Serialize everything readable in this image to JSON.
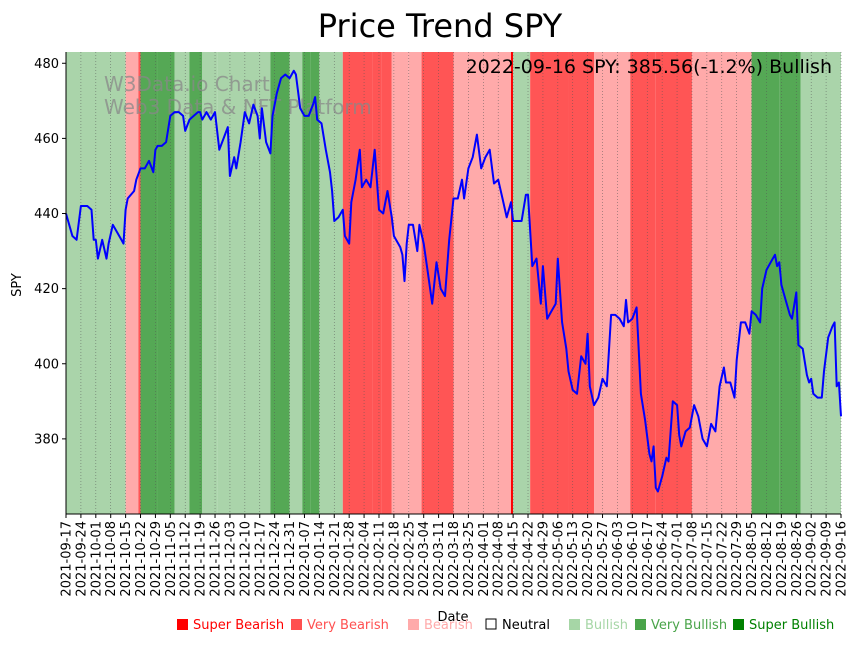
{
  "chart_data": {
    "type": "line",
    "title": "Price Trend SPY",
    "annotation": "2022-09-16 SPY: 385.56(-1.2%) Bullish",
    "watermark": [
      "W3Data.io Chart",
      "Web3 Data & NFT Platform"
    ],
    "xlabel": "Date",
    "ylabel": "SPY",
    "ylim": [
      360,
      483
    ],
    "yticks": [
      380,
      400,
      420,
      440,
      460,
      480
    ],
    "line_color": "#0000ff",
    "date_start": "2021-09-17",
    "date_end": "2022-09-16",
    "xticks": [
      "2021-09-17",
      "2021-09-24",
      "2021-10-01",
      "2021-10-08",
      "2021-10-15",
      "2021-10-22",
      "2021-10-29",
      "2021-11-05",
      "2021-11-12",
      "2021-11-19",
      "2021-11-26",
      "2021-12-03",
      "2021-12-10",
      "2021-12-17",
      "2021-12-24",
      "2021-12-31",
      "2022-01-07",
      "2022-01-14",
      "2022-01-21",
      "2022-01-28",
      "2022-02-04",
      "2022-02-11",
      "2022-02-18",
      "2022-02-25",
      "2022-03-04",
      "2022-03-11",
      "2022-03-18",
      "2022-03-25",
      "2022-04-01",
      "2022-04-08",
      "2022-04-15",
      "2022-04-22",
      "2022-04-29",
      "2022-05-06",
      "2022-05-13",
      "2022-05-20",
      "2022-05-27",
      "2022-06-03",
      "2022-06-10",
      "2022-06-17",
      "2022-06-24",
      "2022-07-01",
      "2022-07-08",
      "2022-07-15",
      "2022-07-22",
      "2022-07-29",
      "2022-08-05",
      "2022-08-12",
      "2022-08-19",
      "2022-08-26",
      "2022-09-02",
      "2022-09-09",
      "2022-09-16"
    ],
    "series": [
      {
        "name": "SPY",
        "points": [
          [
            "2021-09-17",
            440
          ],
          [
            "2021-09-20",
            434
          ],
          [
            "2021-09-22",
            433
          ],
          [
            "2021-09-24",
            442
          ],
          [
            "2021-09-27",
            442
          ],
          [
            "2021-09-29",
            441
          ],
          [
            "2021-09-30",
            433
          ],
          [
            "2021-10-01",
            433
          ],
          [
            "2021-10-02",
            428
          ],
          [
            "2021-10-04",
            433
          ],
          [
            "2021-10-06",
            428
          ],
          [
            "2021-10-07",
            432
          ],
          [
            "2021-10-09",
            437
          ],
          [
            "2021-10-11",
            435
          ],
          [
            "2021-10-13",
            433
          ],
          [
            "2021-10-14",
            432
          ],
          [
            "2021-10-15",
            441
          ],
          [
            "2021-10-16",
            444
          ],
          [
            "2021-10-19",
            446
          ],
          [
            "2021-10-20",
            449
          ],
          [
            "2021-10-22",
            452
          ],
          [
            "2021-10-24",
            452
          ],
          [
            "2021-10-26",
            454
          ],
          [
            "2021-10-28",
            451
          ],
          [
            "2021-10-29",
            457
          ],
          [
            "2021-10-30",
            458
          ],
          [
            "2021-11-01",
            458
          ],
          [
            "2021-11-03",
            459
          ],
          [
            "2021-11-05",
            466
          ],
          [
            "2021-11-07",
            467
          ],
          [
            "2021-11-09",
            467
          ],
          [
            "2021-11-11",
            466
          ],
          [
            "2021-11-12",
            462
          ],
          [
            "2021-11-14",
            465
          ],
          [
            "2021-11-16",
            466
          ],
          [
            "2021-11-18",
            467
          ],
          [
            "2021-11-19",
            467
          ],
          [
            "2021-11-20",
            465
          ],
          [
            "2021-11-22",
            467
          ],
          [
            "2021-11-24",
            465
          ],
          [
            "2021-11-26",
            467
          ],
          [
            "2021-11-28",
            457
          ],
          [
            "2021-11-30",
            460
          ],
          [
            "2021-12-02",
            463
          ],
          [
            "2021-12-03",
            450
          ],
          [
            "2021-12-05",
            455
          ],
          [
            "2021-12-06",
            452
          ],
          [
            "2021-12-08",
            459
          ],
          [
            "2021-12-10",
            467
          ],
          [
            "2021-12-12",
            464
          ],
          [
            "2021-12-14",
            469
          ],
          [
            "2021-12-16",
            466
          ],
          [
            "2021-12-17",
            460
          ],
          [
            "2021-12-18",
            468
          ],
          [
            "2021-12-20",
            459
          ],
          [
            "2021-12-22",
            456
          ],
          [
            "2021-12-23",
            466
          ],
          [
            "2021-12-25",
            472
          ],
          [
            "2021-12-27",
            476
          ],
          [
            "2021-12-29",
            477
          ],
          [
            "2021-12-31",
            476
          ],
          [
            "2022-01-01",
            477
          ],
          [
            "2022-01-02",
            478
          ],
          [
            "2022-01-03",
            477
          ],
          [
            "2022-01-05",
            468
          ],
          [
            "2022-01-07",
            466
          ],
          [
            "2022-01-09",
            466
          ],
          [
            "2022-01-11",
            469
          ],
          [
            "2022-01-12",
            471
          ],
          [
            "2022-01-13",
            465
          ],
          [
            "2022-01-15",
            464
          ],
          [
            "2022-01-17",
            457
          ],
          [
            "2022-01-19",
            451
          ],
          [
            "2022-01-20",
            446
          ],
          [
            "2022-01-21",
            438
          ],
          [
            "2022-01-23",
            439
          ],
          [
            "2022-01-25",
            441
          ],
          [
            "2022-01-26",
            434
          ],
          [
            "2022-01-28",
            432
          ],
          [
            "2022-01-29",
            443
          ],
          [
            "2022-01-31",
            449
          ],
          [
            "2022-02-02",
            457
          ],
          [
            "2022-02-03",
            447
          ],
          [
            "2022-02-05",
            449
          ],
          [
            "2022-02-07",
            447
          ],
          [
            "2022-02-09",
            457
          ],
          [
            "2022-02-11",
            441
          ],
          [
            "2022-02-13",
            440
          ],
          [
            "2022-02-15",
            446
          ],
          [
            "2022-02-17",
            439
          ],
          [
            "2022-02-18",
            434
          ],
          [
            "2022-02-21",
            431
          ],
          [
            "2022-02-22",
            429
          ],
          [
            "2022-02-23",
            422
          ],
          [
            "2022-02-24",
            432
          ],
          [
            "2022-02-25",
            437
          ],
          [
            "2022-02-27",
            437
          ],
          [
            "2022-03-01",
            430
          ],
          [
            "2022-03-02",
            437
          ],
          [
            "2022-03-04",
            432
          ],
          [
            "2022-03-06",
            424
          ],
          [
            "2022-03-08",
            416
          ],
          [
            "2022-03-10",
            427
          ],
          [
            "2022-03-12",
            420
          ],
          [
            "2022-03-14",
            418
          ],
          [
            "2022-03-16",
            433
          ],
          [
            "2022-03-18",
            444
          ],
          [
            "2022-03-20",
            444
          ],
          [
            "2022-03-22",
            449
          ],
          [
            "2022-03-23",
            444
          ],
          [
            "2022-03-25",
            452
          ],
          [
            "2022-03-27",
            455
          ],
          [
            "2022-03-29",
            461
          ],
          [
            "2022-03-31",
            452
          ],
          [
            "2022-04-02",
            455
          ],
          [
            "2022-04-04",
            457
          ],
          [
            "2022-04-06",
            448
          ],
          [
            "2022-04-08",
            449
          ],
          [
            "2022-04-10",
            444
          ],
          [
            "2022-04-12",
            439
          ],
          [
            "2022-04-14",
            443
          ],
          [
            "2022-04-15",
            438
          ],
          [
            "2022-04-17",
            438
          ],
          [
            "2022-04-19",
            438
          ],
          [
            "2022-04-21",
            445
          ],
          [
            "2022-04-22",
            445
          ],
          [
            "2022-04-24",
            426
          ],
          [
            "2022-04-26",
            428
          ],
          [
            "2022-04-28",
            416
          ],
          [
            "2022-04-29",
            426
          ],
          [
            "2022-05-01",
            412
          ],
          [
            "2022-05-03",
            414
          ],
          [
            "2022-05-05",
            416
          ],
          [
            "2022-05-06",
            428
          ],
          [
            "2022-05-08",
            411
          ],
          [
            "2022-05-10",
            404
          ],
          [
            "2022-05-11",
            398
          ],
          [
            "2022-05-13",
            393
          ],
          [
            "2022-05-15",
            392
          ],
          [
            "2022-05-17",
            402
          ],
          [
            "2022-05-19",
            400
          ],
          [
            "2022-05-20",
            408
          ],
          [
            "2022-05-21",
            394
          ],
          [
            "2022-05-23",
            389
          ],
          [
            "2022-05-25",
            391
          ],
          [
            "2022-05-27",
            396
          ],
          [
            "2022-05-29",
            394
          ],
          [
            "2022-05-31",
            413
          ],
          [
            "2022-06-02",
            413
          ],
          [
            "2022-06-04",
            412
          ],
          [
            "2022-06-06",
            410
          ],
          [
            "2022-06-07",
            417
          ],
          [
            "2022-06-08",
            411
          ],
          [
            "2022-06-10",
            412
          ],
          [
            "2022-06-12",
            415
          ],
          [
            "2022-06-14",
            392
          ],
          [
            "2022-06-16",
            385
          ],
          [
            "2022-06-18",
            376
          ],
          [
            "2022-06-19",
            374
          ],
          [
            "2022-06-20",
            378
          ],
          [
            "2022-06-21",
            367
          ],
          [
            "2022-06-22",
            366
          ],
          [
            "2022-06-24",
            370
          ],
          [
            "2022-06-26",
            375
          ],
          [
            "2022-06-27",
            374
          ],
          [
            "2022-06-29",
            390
          ],
          [
            "2022-07-01",
            389
          ],
          [
            "2022-07-02",
            381
          ],
          [
            "2022-07-03",
            378
          ],
          [
            "2022-07-05",
            382
          ],
          [
            "2022-07-07",
            383
          ],
          [
            "2022-07-09",
            389
          ],
          [
            "2022-07-11",
            386
          ],
          [
            "2022-07-13",
            380
          ],
          [
            "2022-07-15",
            378
          ],
          [
            "2022-07-17",
            384
          ],
          [
            "2022-07-19",
            382
          ],
          [
            "2022-07-21",
            394
          ],
          [
            "2022-07-23",
            399
          ],
          [
            "2022-07-24",
            395
          ],
          [
            "2022-07-26",
            395
          ],
          [
            "2022-07-28",
            391
          ],
          [
            "2022-07-29",
            401
          ],
          [
            "2022-07-31",
            411
          ],
          [
            "2022-08-02",
            411
          ],
          [
            "2022-08-04",
            408
          ],
          [
            "2022-08-05",
            414
          ],
          [
            "2022-08-07",
            413
          ],
          [
            "2022-08-09",
            411
          ],
          [
            "2022-08-10",
            420
          ],
          [
            "2022-08-12",
            425
          ],
          [
            "2022-08-14",
            427
          ],
          [
            "2022-08-16",
            429
          ],
          [
            "2022-08-17",
            426
          ],
          [
            "2022-08-18",
            427
          ],
          [
            "2022-08-19",
            421
          ],
          [
            "2022-08-21",
            417
          ],
          [
            "2022-08-23",
            413
          ],
          [
            "2022-08-24",
            412
          ],
          [
            "2022-08-26",
            419
          ],
          [
            "2022-08-27",
            405
          ],
          [
            "2022-08-29",
            404
          ],
          [
            "2022-08-31",
            397
          ],
          [
            "2022-09-01",
            395
          ],
          [
            "2022-09-02",
            396
          ],
          [
            "2022-09-03",
            392
          ],
          [
            "2022-09-05",
            391
          ],
          [
            "2022-09-07",
            391
          ],
          [
            "2022-09-08",
            398
          ],
          [
            "2022-09-10",
            407
          ],
          [
            "2022-09-12",
            410
          ],
          [
            "2022-09-13",
            411
          ],
          [
            "2022-09-14",
            394
          ],
          [
            "2022-09-15",
            395
          ],
          [
            "2022-09-16",
            386
          ]
        ]
      }
    ],
    "regimes": [
      [
        "2021-09-17",
        "2021-10-15",
        "bullish"
      ],
      [
        "2021-10-15",
        "2021-10-21",
        "bearish"
      ],
      [
        "2021-10-21",
        "2021-10-22",
        "very_bearish"
      ],
      [
        "2021-10-22",
        "2021-10-30",
        "very_bullish"
      ],
      [
        "2021-10-30",
        "2021-11-07",
        "very_bullish"
      ],
      [
        "2021-11-07",
        "2021-11-14",
        "bullish"
      ],
      [
        "2021-11-14",
        "2021-11-20",
        "very_bullish"
      ],
      [
        "2021-11-20",
        "2021-11-27",
        "bullish"
      ],
      [
        "2021-11-27",
        "2021-12-22",
        "bullish"
      ],
      [
        "2021-12-22",
        "2021-12-31",
        "very_bullish"
      ],
      [
        "2021-12-31",
        "2022-01-06",
        "bullish"
      ],
      [
        "2022-01-06",
        "2022-01-10",
        "very_bullish"
      ],
      [
        "2022-01-10",
        "2022-01-14",
        "very_bullish"
      ],
      [
        "2022-01-14",
        "2022-01-25",
        "bullish"
      ],
      [
        "2022-01-25",
        "2022-02-08",
        "very_bearish"
      ],
      [
        "2022-02-08",
        "2022-02-12",
        "very_bearish"
      ],
      [
        "2022-02-12",
        "2022-02-17",
        "very_bearish"
      ],
      [
        "2022-02-17",
        "2022-02-25",
        "bearish"
      ],
      [
        "2022-02-25",
        "2022-03-03",
        "bearish"
      ],
      [
        "2022-03-03",
        "2022-03-18",
        "very_bearish"
      ],
      [
        "2022-03-18",
        "2022-04-14",
        "bearish"
      ],
      [
        "2022-04-14",
        "2022-04-15",
        "super_bearish"
      ],
      [
        "2022-04-15",
        "2022-04-23",
        "bullish"
      ],
      [
        "2022-04-23",
        "2022-05-11",
        "very_bearish"
      ],
      [
        "2022-05-11",
        "2022-05-23",
        "very_bearish"
      ],
      [
        "2022-05-23",
        "2022-06-09",
        "bearish"
      ],
      [
        "2022-06-09",
        "2022-06-21",
        "very_bearish"
      ],
      [
        "2022-06-21",
        "2022-07-08",
        "very_bearish"
      ],
      [
        "2022-07-08",
        "2022-08-05",
        "bearish"
      ],
      [
        "2022-08-05",
        "2022-08-18",
        "very_bullish"
      ],
      [
        "2022-08-18",
        "2022-08-28",
        "very_bullish"
      ],
      [
        "2022-08-28",
        "2022-09-16",
        "bullish"
      ]
    ],
    "regime_colors": {
      "super_bearish": "#ff0000",
      "very_bearish": "#ff5555",
      "bearish": "#ffaaaa",
      "neutral": "#ffffff",
      "bullish": "#aad4aa",
      "very_bullish": "#55a855",
      "super_bullish": "#008000"
    },
    "legend": [
      {
        "key": "super_bearish",
        "label": "Super Bearish",
        "color": "#ff0000"
      },
      {
        "key": "very_bearish",
        "label": "Very Bearish",
        "color": "#ff5050"
      },
      {
        "key": "bearish",
        "label": "Bearish",
        "color": "#ffaaaa"
      },
      {
        "key": "neutral",
        "label": "Neutral",
        "color": "#000000"
      },
      {
        "key": "bullish",
        "label": "Bullish",
        "color": "#a6d6a6"
      },
      {
        "key": "very_bullish",
        "label": "Very Bullish",
        "color": "#4aa44a"
      },
      {
        "key": "super_bullish",
        "label": "Super Bullish",
        "color": "#008000"
      }
    ]
  }
}
